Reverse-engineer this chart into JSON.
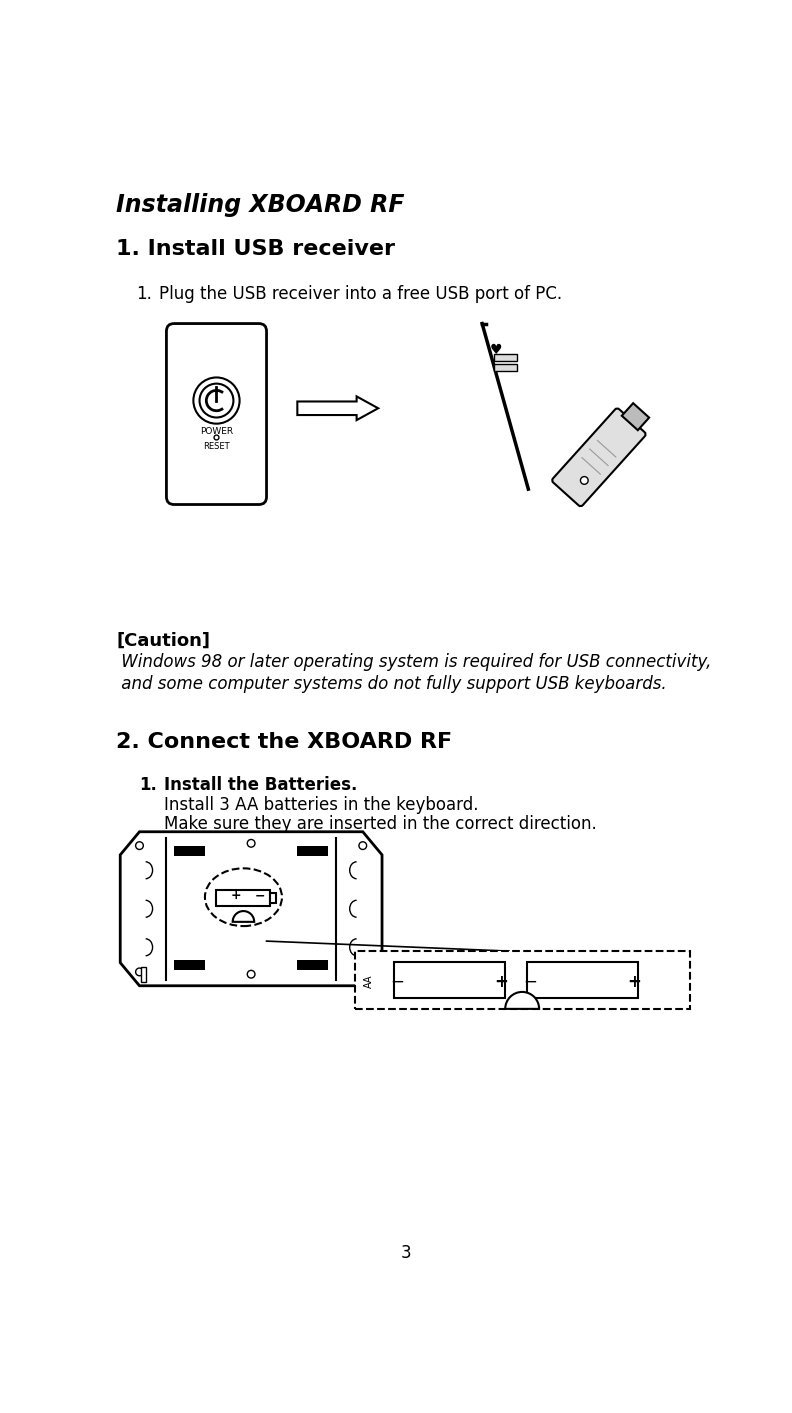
{
  "title": "Installing XBOARD RF",
  "section1_title": "1. Install USB receiver",
  "section1_step1_num": "1.",
  "section1_step1_text": "   Plug the USB receiver into a free USB port of PC.",
  "caution_label": "[Caution]",
  "caution_text1": " Windows 98 or later operating system is required for USB connectivity,",
  "caution_text2": " and some computer systems do not fully support USB keyboards.",
  "section2_title": "2. Connect the XBOARD RF",
  "section2_step1_num": "1.",
  "section2_step1_bold": "Install the Batteries.",
  "section2_step1_line1": "Install 3 AA batteries in the keyboard.",
  "section2_step1_line2": "Make sure they are inserted in the correct direction.",
  "page_number": "3",
  "bg_color": "#ffffff",
  "text_color": "#000000",
  "title_fontsize": 17,
  "section_fontsize": 16,
  "body_fontsize": 12
}
